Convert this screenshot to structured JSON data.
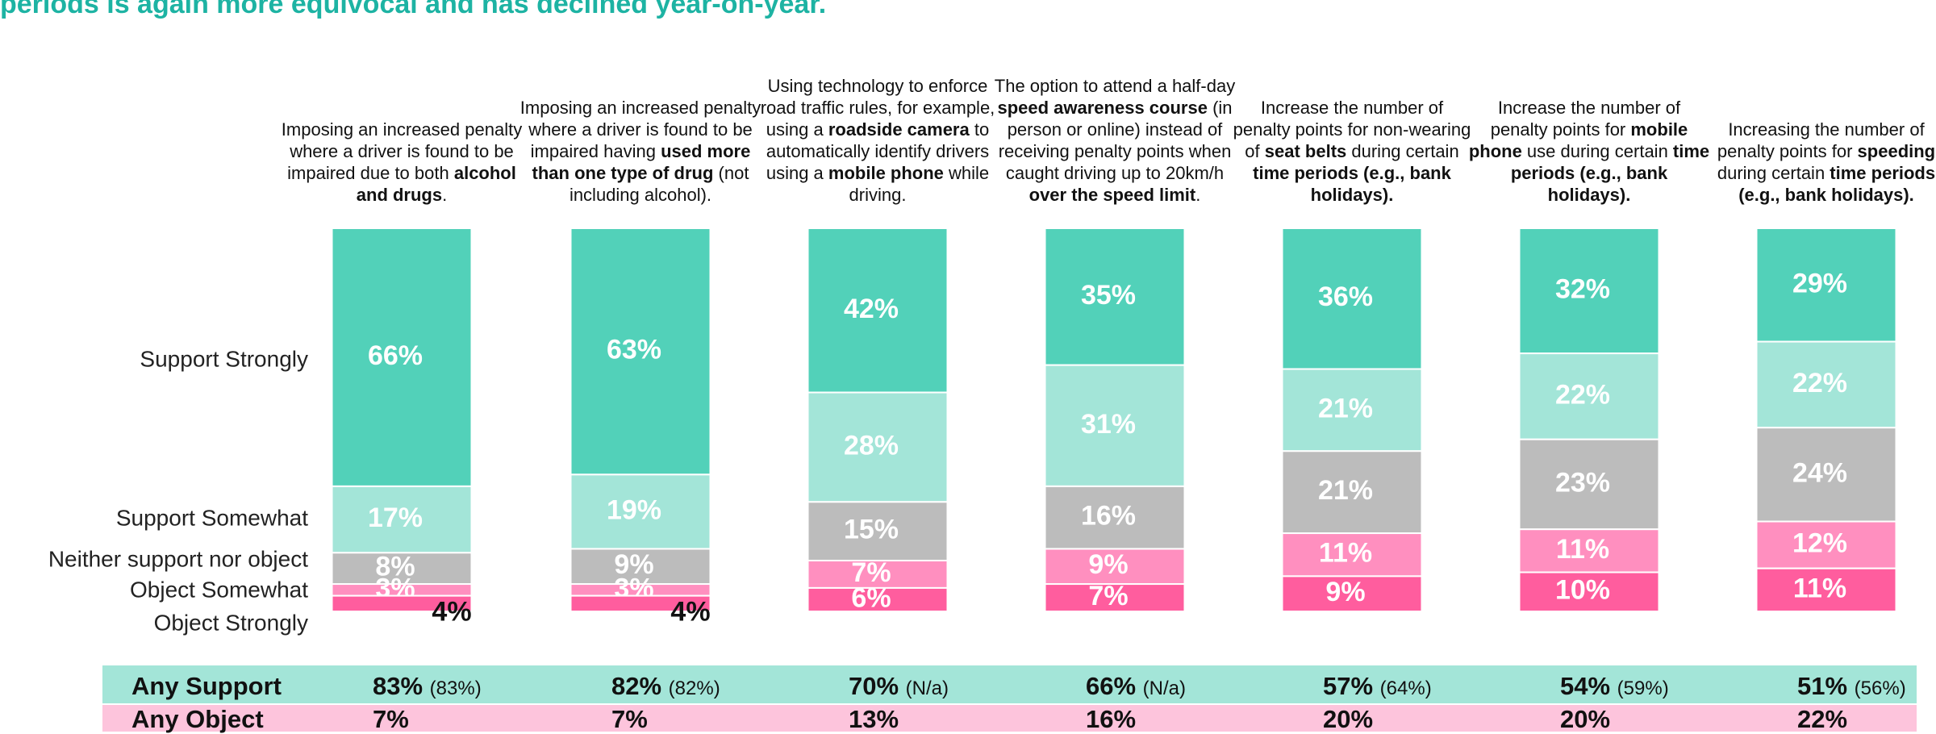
{
  "chart_data": {
    "type": "stacked-bar",
    "title": "periods is again more equivocal and has declined year-on-year.",
    "categories": [
      [
        "Imposing an increased penalty where a driver is found to be impaired due to both ",
        "alcohol and drugs",
        "."
      ],
      [
        "Imposing an increased penalty where a driver is found to be impaired having ",
        "used more than one type of drug",
        " (not including alcohol)."
      ],
      [
        "Using technology to enforce road traffic rules, for example, using a ",
        "roadside camera",
        " to automatically identify drivers using a ",
        "mobile phone",
        " while driving."
      ],
      [
        "The option to attend a half-day ",
        "speed awareness course",
        " (in person or online) instead of receiving penalty points when caught driving up to 20km/h ",
        "over the speed limit",
        "."
      ],
      [
        "Increase the number of penalty points for non-wearing of ",
        "seat belts",
        " during certain ",
        "time periods (e.g., bank holidays)."
      ],
      [
        "Increase the number of penalty points for ",
        "mobile phone",
        " use during certain ",
        "time periods (e.g., bank holidays)."
      ],
      [
        "Increasing the number of penalty points for ",
        "speeding",
        " during certain ",
        "time periods (e.g., bank holidays)."
      ]
    ],
    "ylim": [
      0,
      98
    ],
    "series": [
      {
        "name": "Support Strongly",
        "color": "#52d1b9",
        "values": [
          66,
          63,
          42,
          35,
          36,
          32,
          29
        ],
        "value_labels": [
          "66%",
          "63%",
          "42%",
          "35%",
          "36%",
          "32%",
          "29%"
        ]
      },
      {
        "name": "Support Somewhat",
        "color": "#a3e5d8",
        "values": [
          17,
          19,
          28,
          31,
          21,
          22,
          22
        ],
        "value_labels": [
          "17%",
          "19%",
          "28%",
          "31%",
          "21%",
          "22%",
          "22%"
        ]
      },
      {
        "name": "Neither support nor object",
        "color": "#bcbcbc",
        "values": [
          8,
          9,
          15,
          16,
          21,
          23,
          24
        ],
        "value_labels": [
          "8%",
          "9%",
          "15%",
          "16%",
          "21%",
          "23%",
          "24%"
        ]
      },
      {
        "name": "Object Somewhat",
        "color": "#ff8fbf",
        "values": [
          3,
          3,
          7,
          9,
          11,
          11,
          12
        ],
        "value_labels": [
          "3%",
          "3%",
          "7%",
          "9%",
          "11%",
          "11%",
          "12%"
        ]
      },
      {
        "name": "Object Strongly",
        "color": "#ff5d9e",
        "values": [
          4,
          4,
          6,
          7,
          9,
          10,
          11
        ],
        "value_labels": [
          "4%",
          "4%",
          "6%",
          "7%",
          "9%",
          "10%",
          "11%"
        ]
      }
    ],
    "summary": [
      {
        "label": "Any Support",
        "color": "#a3e5d8",
        "values": [
          "83%",
          "82%",
          "70%",
          "66%",
          "57%",
          "54%",
          "51%"
        ],
        "previous": [
          "(83%)",
          "(82%)",
          "(N/a)",
          "(N/a)",
          "(64%)",
          "(59%)",
          "(56%)"
        ]
      },
      {
        "label": "Any Object",
        "color": "#fdc4dc",
        "values": [
          "7%",
          "7%",
          "13%",
          "16%",
          "20%",
          "20%",
          "22%"
        ],
        "previous": []
      }
    ]
  }
}
